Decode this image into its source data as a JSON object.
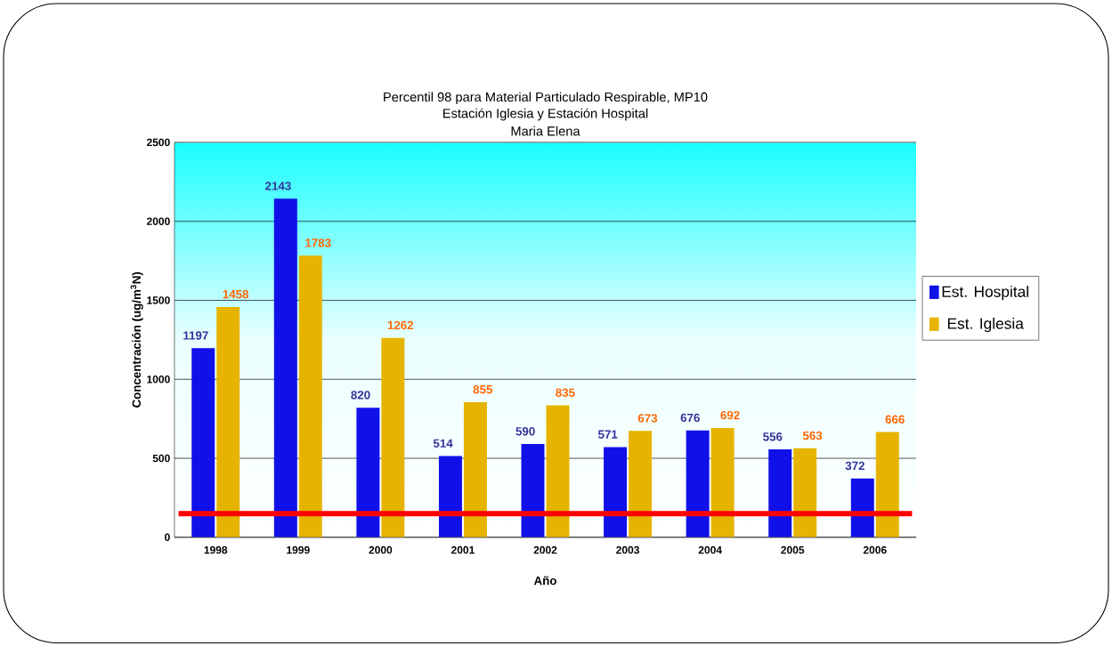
{
  "chart_data": {
    "type": "bar",
    "title": "Percentil 98 para Material Particulado Respirable, MP10",
    "subtitle": "Estación Iglesia y Estación Hospital",
    "annotations": [
      "Maria Elena"
    ],
    "xlabel": "Año",
    "ylabel": "Concentración (ug/m$^{3}$N)",
    "categories": [
      "1998",
      "1999",
      "2000",
      "2001",
      "2002",
      "2003",
      "2004",
      "2005",
      "2006"
    ],
    "series": [
      {
        "name": "Est. Hospital",
        "color": "#1010e8",
        "values": [
          1197,
          2143,
          820,
          514,
          590,
          571,
          676,
          556,
          372
        ]
      },
      {
        "name": "Est. Iglesia",
        "color": "#e6b400",
        "values": [
          1458,
          1783,
          1262,
          855,
          835,
          673,
          692,
          563,
          666
        ]
      }
    ],
    "ylim": [
      0,
      2500
    ],
    "yticks": [
      0,
      500,
      1000,
      1500,
      2000,
      2500
    ],
    "grid": "y",
    "legend": "right",
    "data_labels": true,
    "ref_lines": [
      {
        "axis": "y",
        "value": 150,
        "color": "#ff0000"
      }
    ]
  }
}
